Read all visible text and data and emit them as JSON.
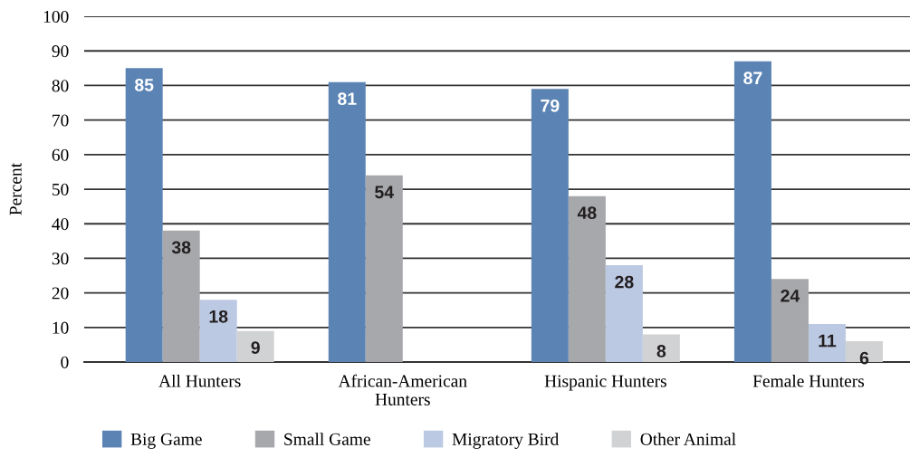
{
  "chart_data": {
    "type": "bar",
    "ylabel": "Percent",
    "categories": [
      "All Hunters",
      "African-American\nHunters",
      "Hispanic Hunters",
      "Female Hunters"
    ],
    "series": [
      {
        "name": "Big Game",
        "color": "#5b84b5",
        "values": [
          85,
          81,
          79,
          87
        ]
      },
      {
        "name": "Small Game",
        "color": "#a7a8ab",
        "values": [
          38,
          54,
          48,
          24
        ]
      },
      {
        "name": "Migratory Bird",
        "color": "#bcc9e2",
        "values": [
          18,
          null,
          28,
          11
        ]
      },
      {
        "name": "Other Animal",
        "color": "#d1d2d4",
        "values": [
          9,
          null,
          8,
          6
        ]
      }
    ],
    "ylim": [
      0,
      100
    ],
    "yticks": [
      0,
      10,
      20,
      30,
      40,
      50,
      60,
      70,
      80,
      90,
      100
    ],
    "grid": "y",
    "legend": "bottom",
    "data_labels": true
  }
}
